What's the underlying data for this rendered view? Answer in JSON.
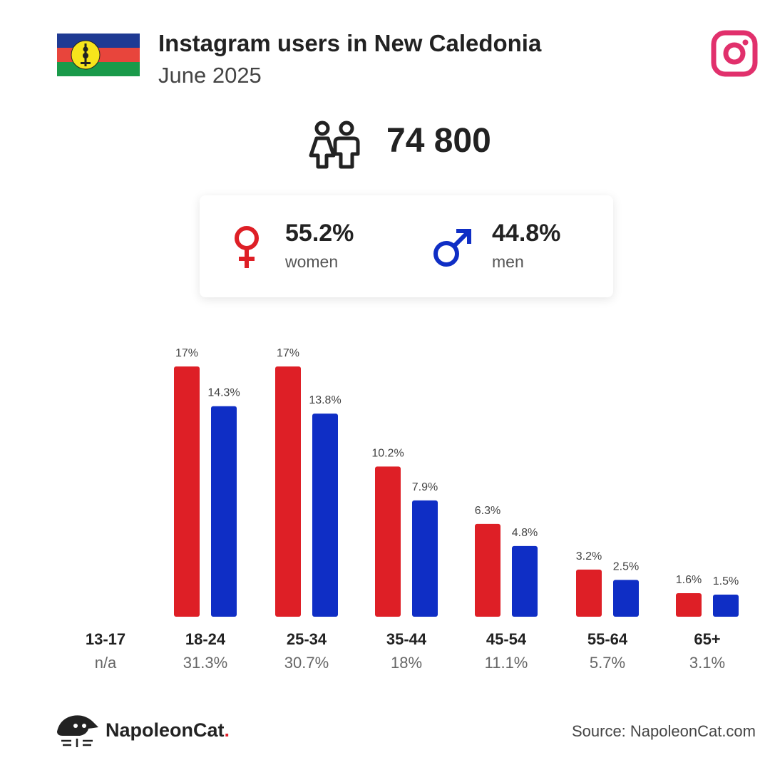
{
  "header": {
    "title": "Instagram users in New Caledonia",
    "subtitle": "June 2025",
    "flag_colors": {
      "top": "#1f3a93",
      "middle": "#e8453c",
      "bottom": "#1a9a4a",
      "disc": "#f7e41c"
    },
    "logo_icon": "instagram-icon"
  },
  "total": {
    "icon": "people-icon",
    "value": "74 800"
  },
  "gender": {
    "women": {
      "percent": "55.2%",
      "label": "women",
      "icon": "female-symbol-icon",
      "color": "#de1f26"
    },
    "men": {
      "percent": "44.8%",
      "label": "men",
      "icon": "male-symbol-icon",
      "color": "#0f2ec5"
    }
  },
  "chart_data": {
    "type": "bar",
    "categories": [
      "13-17",
      "18-24",
      "25-34",
      "35-44",
      "45-54",
      "55-64",
      "65+"
    ],
    "category_share": [
      "n/a",
      "31.3%",
      "30.7%",
      "18%",
      "11.1%",
      "5.7%",
      "3.1%"
    ],
    "series": [
      {
        "values": [
          null,
          17,
          17,
          10.2,
          6.3,
          3.2,
          1.6
        ],
        "labels": [
          "",
          "17%",
          "17%",
          "10.2%",
          "6.3%",
          "3.2%",
          "1.6%"
        ],
        "color": "#de1f26"
      },
      {
        "values": [
          null,
          14.3,
          13.8,
          7.9,
          4.8,
          2.5,
          1.5
        ],
        "labels": [
          "",
          "14.3%",
          "13.8%",
          "7.9%",
          "4.8%",
          "2.5%",
          "1.5%"
        ],
        "color": "#0f2ec5"
      }
    ],
    "ylim": [
      0,
      17
    ],
    "grid": false,
    "legend": "none"
  },
  "footer": {
    "brand_name": "NapoleonCat",
    "brand_dot": ".",
    "source": "Source: NapoleonCat.com",
    "brand_icon": "napoleoncat-logo-icon"
  }
}
